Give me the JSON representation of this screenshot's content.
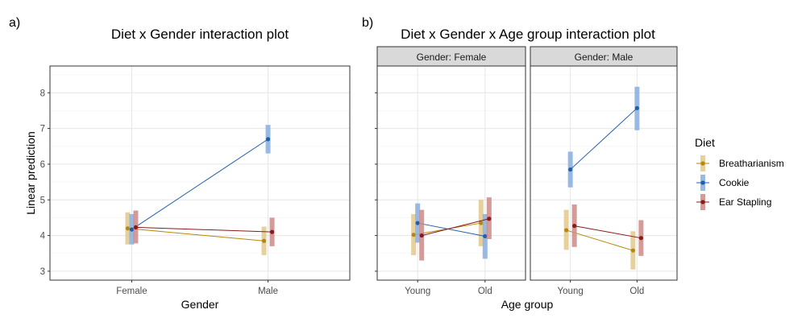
{
  "chart_data": [
    {
      "panel_tag": "a)",
      "type": "line",
      "title": "Diet x Gender interaction plot",
      "xlabel": "Gender",
      "ylabel": "Linear prediction",
      "categories": [
        "Female",
        "Male"
      ],
      "ylim": [
        2.75,
        8.75
      ],
      "yticks": [
        "3",
        "4",
        "5",
        "6",
        "7",
        "8"
      ],
      "series": [
        {
          "name": "Breatharianism",
          "values": [
            4.2,
            3.85
          ],
          "lower": [
            3.75,
            3.45
          ],
          "upper": [
            4.65,
            4.25
          ]
        },
        {
          "name": "Cookie",
          "values": [
            4.17,
            6.7
          ],
          "lower": [
            3.75,
            6.3
          ],
          "upper": [
            4.6,
            7.1
          ]
        },
        {
          "name": "Ear Stapling",
          "values": [
            4.23,
            4.1
          ],
          "lower": [
            3.78,
            3.7
          ],
          "upper": [
            4.7,
            4.5
          ]
        }
      ]
    },
    {
      "panel_tag": "b)",
      "type": "line",
      "title": "Diet x Gender x Age group interaction plot",
      "xlabel": "Age group",
      "categories": [
        "Young",
        "Old"
      ],
      "ylim": [
        2.75,
        8.75
      ],
      "facets": [
        {
          "strip": "Gender: Female",
          "series": [
            {
              "name": "Breatharianism",
              "values": [
                4.02,
                4.35
              ],
              "lower": [
                3.45,
                3.7
              ],
              "upper": [
                4.6,
                5.0
              ]
            },
            {
              "name": "Cookie",
              "values": [
                4.35,
                3.98
              ],
              "lower": [
                3.8,
                3.35
              ],
              "upper": [
                4.9,
                4.6
              ]
            },
            {
              "name": "Ear Stapling",
              "values": [
                4.0,
                4.47
              ],
              "lower": [
                3.3,
                3.9
              ],
              "upper": [
                4.72,
                5.07
              ]
            }
          ]
        },
        {
          "strip": "Gender: Male",
          "series": [
            {
              "name": "Breatharianism",
              "values": [
                4.15,
                3.58
              ],
              "lower": [
                3.6,
                3.05
              ],
              "upper": [
                4.72,
                4.12
              ]
            },
            {
              "name": "Cookie",
              "values": [
                5.85,
                7.57
              ],
              "lower": [
                5.35,
                6.95
              ],
              "upper": [
                6.35,
                8.17
              ]
            },
            {
              "name": "Ear Stapling",
              "values": [
                4.27,
                3.93
              ],
              "lower": [
                3.68,
                3.43
              ],
              "upper": [
                4.87,
                4.43
              ]
            }
          ]
        }
      ]
    }
  ],
  "legend": {
    "title": "Diet",
    "items": [
      "Breatharianism",
      "Cookie",
      "Ear Stapling"
    ]
  },
  "colors": {
    "Breatharianism": {
      "line": "#b8860b",
      "point": "#b8860b",
      "band": "#e2c98c"
    },
    "Cookie": {
      "line": "#1f5fa8",
      "point": "#1f5fa8",
      "band": "#86aede"
    },
    "Ear Stapling": {
      "line": "#8b1a1a",
      "point": "#8b1a1a",
      "band": "#cd8a86"
    }
  }
}
